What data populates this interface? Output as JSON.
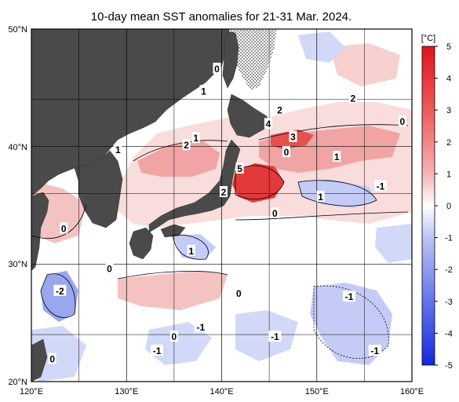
{
  "title": "10-day mean SST anomalies for 21-31 Mar. 2024.",
  "map": {
    "lon_range": [
      120,
      160
    ],
    "lat_range": [
      20,
      50
    ],
    "x_ticks": [
      "120°E",
      "130°E",
      "140°E",
      "150°E",
      "160°E"
    ],
    "y_ticks": [
      "50°N",
      "40°N",
      "30°N",
      "20°N"
    ],
    "land_color": "#4a4a4a",
    "grid": true
  },
  "colorbar": {
    "unit": "[°C]",
    "ticks": [
      "5",
      "4",
      "3",
      "2",
      "1",
      "0",
      "-1",
      "-2",
      "-3",
      "-4",
      "-5"
    ],
    "max_color": "#e0141e",
    "min_color": "#1428e0"
  },
  "contour_labels": [
    {
      "text": "0",
      "lon": 139.5,
      "lat": 46.6
    },
    {
      "text": "1",
      "lon": 138.1,
      "lat": 44.7
    },
    {
      "text": "2",
      "lon": 146.1,
      "lat": 43.1
    },
    {
      "text": "4",
      "lon": 144.9,
      "lat": 41.9
    },
    {
      "text": "3",
      "lon": 147.5,
      "lat": 40.8
    },
    {
      "text": "2",
      "lon": 153.8,
      "lat": 44.1
    },
    {
      "text": "0",
      "lon": 159.0,
      "lat": 42.1
    },
    {
      "text": "2",
      "lon": 136.3,
      "lat": 40.1
    },
    {
      "text": "1",
      "lon": 137.3,
      "lat": 40.7
    },
    {
      "text": "1",
      "lon": 129.1,
      "lat": 39.7
    },
    {
      "text": "0",
      "lon": 146.8,
      "lat": 39.5
    },
    {
      "text": "1",
      "lon": 152.1,
      "lat": 39.1
    },
    {
      "text": "5",
      "lon": 141.9,
      "lat": 38.1
    },
    {
      "text": "-1",
      "lon": 156.7,
      "lat": 36.6
    },
    {
      "text": "2",
      "lon": 140.2,
      "lat": 36.1
    },
    {
      "text": "1",
      "lon": 150.4,
      "lat": 35.7
    },
    {
      "text": "0",
      "lon": 145.6,
      "lat": 34.3
    },
    {
      "text": "0",
      "lon": 123.4,
      "lat": 33.0
    },
    {
      "text": "1",
      "lon": 136.8,
      "lat": 31.1
    },
    {
      "text": "0",
      "lon": 128.2,
      "lat": 29.6
    },
    {
      "text": "-2",
      "lon": 123.0,
      "lat": 27.7
    },
    {
      "text": "0",
      "lon": 141.8,
      "lat": 27.5
    },
    {
      "text": "-1",
      "lon": 153.4,
      "lat": 27.2
    },
    {
      "text": "-1",
      "lon": 137.8,
      "lat": 24.6
    },
    {
      "text": "-1",
      "lon": 145.6,
      "lat": 23.8
    },
    {
      "text": "0",
      "lon": 135.0,
      "lat": 23.8
    },
    {
      "text": "-1",
      "lon": 133.2,
      "lat": 22.6
    },
    {
      "text": "-1",
      "lon": 156.1,
      "lat": 22.6
    },
    {
      "text": "0",
      "lon": 122.2,
      "lat": 21.9
    }
  ]
}
